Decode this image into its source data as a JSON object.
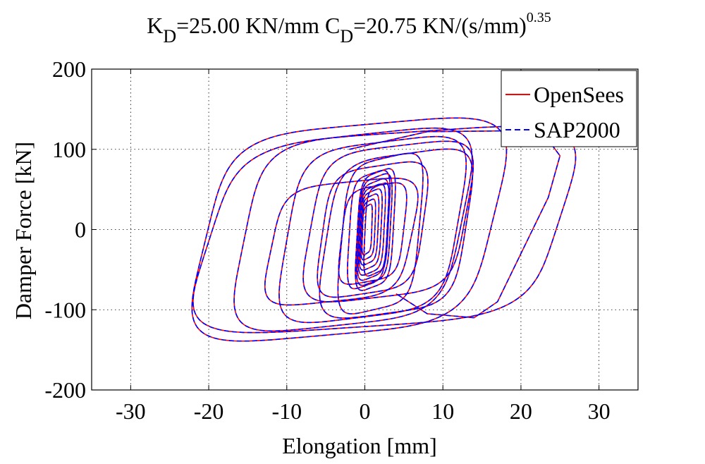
{
  "chart_data": {
    "type": "line",
    "title": {
      "k_symbol": "K",
      "k_sub": "D",
      "k_rest": "=25.00 KN/mm ",
      "c_symbol": "C",
      "c_sub": "D",
      "c_rest": "=20.75 KN/(s/mm)",
      "exponent": "0.35"
    },
    "xlabel": "Elongation [mm]",
    "ylabel": "Damper Force [kN]",
    "xlim": [
      -35,
      35
    ],
    "ylim": [
      -200,
      200
    ],
    "xticks": [
      -30,
      -20,
      -10,
      0,
      10,
      20,
      30
    ],
    "xtick_labels": [
      "-30",
      "-20",
      "-10",
      "0",
      "10",
      "20",
      "30"
    ],
    "yticks": [
      -200,
      -100,
      0,
      100,
      200
    ],
    "ytick_labels": [
      "-200",
      "-100",
      "0",
      "100",
      "200"
    ],
    "grid": true,
    "legend_position": "top-right",
    "series": [
      {
        "name": "OpenSees",
        "color": "#ff0000",
        "style": "solid"
      },
      {
        "name": "SAP2000",
        "color": "#0000ff",
        "style": "dashed"
      }
    ],
    "loops": [
      {
        "center": [
          1.5,
          0
        ],
        "amp_x": 1.5,
        "amp_f": 55
      },
      {
        "center": [
          0.5,
          0
        ],
        "amp_x": 2.5,
        "amp_f": 70
      },
      {
        "center": [
          1.0,
          -5
        ],
        "amp_x": 4.0,
        "amp_f": 60
      },
      {
        "center": [
          1.0,
          0
        ],
        "amp_x": 6.5,
        "amp_f": 80
      },
      {
        "center": [
          2.0,
          -5
        ],
        "amp_x": 5.0,
        "amp_f": 95
      },
      {
        "center": [
          -3.0,
          -15
        ],
        "amp_x": 9.0,
        "amp_f": 75
      },
      {
        "center": [
          1.0,
          0
        ],
        "amp_x": 11.0,
        "amp_f": 110
      },
      {
        "center": [
          3.0,
          10
        ],
        "amp_x": 10.0,
        "amp_f": 95
      },
      {
        "center": [
          -1.5,
          0
        ],
        "amp_x": 14.0,
        "amp_f": 120
      },
      {
        "center": [
          -2.0,
          0
        ],
        "amp_x": 18.5,
        "amp_f": 132
      },
      {
        "center": [
          2.5,
          0
        ],
        "amp_x": 22.5,
        "amp_f": 122
      },
      {
        "center": [
          4.0,
          -5
        ],
        "amp_x": 9.0,
        "amp_f": 100
      }
    ],
    "extremes": {
      "x_min": -20.5,
      "x_max": 25.0,
      "f_min": -140,
      "f_max": 137
    }
  }
}
